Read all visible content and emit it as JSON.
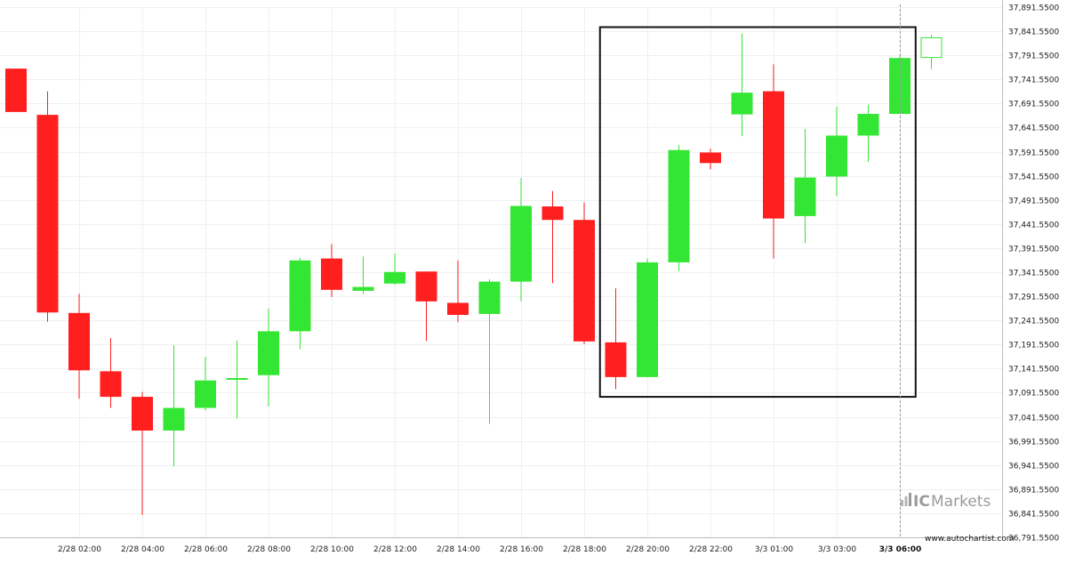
{
  "chart_data": {
    "type": "candlestick",
    "title": "",
    "xlabel": "",
    "ylabel": "",
    "ylim": [
      36791.55,
      37891.55
    ],
    "y_ticks": [
      "37,891.5500",
      "37,841.5500",
      "37,791.5500",
      "37,741.5500",
      "37,691.5500",
      "37,641.5500",
      "37,591.5500",
      "37,541.5500",
      "37,491.5500",
      "37,441.5500",
      "37,391.5500",
      "37,341.5500",
      "37,291.5500",
      "37,241.5500",
      "37,191.5500",
      "37,141.5500",
      "37,091.5500",
      "37,041.5500",
      "36,991.5500",
      "36,941.5500",
      "36,891.5500",
      "36,841.5500",
      "36,791.5500"
    ],
    "x_ticks": [
      {
        "label": "2/28 02:00",
        "index": 2.0
      },
      {
        "label": "2/28 04:00",
        "index": 4.0
      },
      {
        "label": "2/28 06:00",
        "index": 6.0
      },
      {
        "label": "2/28 08:00",
        "index": 8.0
      },
      {
        "label": "2/28 10:00",
        "index": 10.0
      },
      {
        "label": "2/28 12:00",
        "index": 12.0
      },
      {
        "label": "2/28 14:00",
        "index": 14.0
      },
      {
        "label": "2/28 16:00",
        "index": 16.0
      },
      {
        "label": "2/28 18:00",
        "index": 18.0
      },
      {
        "label": "2/28 20:00",
        "index": 20.0
      },
      {
        "label": "2/28 22:00",
        "index": 22.0
      },
      {
        "label": "3/3 01:00",
        "index": 24.0
      },
      {
        "label": "3/3 03:00",
        "index": 26.0
      },
      {
        "label": "3/3 06:00",
        "index": 28.0,
        "bold": true
      }
    ],
    "candles": [
      {
        "open": 37764,
        "high": 37764,
        "low": 37674,
        "close": 37674
      },
      {
        "open": 37668,
        "high": 37717,
        "low": 37239,
        "close": 37258
      },
      {
        "open": 37257,
        "high": 37297,
        "low": 37079,
        "close": 37138
      },
      {
        "open": 37136,
        "high": 37205,
        "low": 37060,
        "close": 37083
      },
      {
        "open": 37083,
        "high": 37093,
        "low": 36838,
        "close": 37013
      },
      {
        "open": 37013,
        "high": 37190,
        "low": 36939,
        "close": 37060
      },
      {
        "open": 37060,
        "high": 37166,
        "low": 37055,
        "close": 37117
      },
      {
        "open": 37122,
        "high": 37200,
        "low": 37038,
        "close": 37122
      },
      {
        "open": 37128,
        "high": 37266,
        "low": 37063,
        "close": 37219
      },
      {
        "open": 37219,
        "high": 37371,
        "low": 37182,
        "close": 37366
      },
      {
        "open": 37370,
        "high": 37400,
        "low": 37290,
        "close": 37305
      },
      {
        "open": 37303,
        "high": 37374,
        "low": 37296,
        "close": 37311
      },
      {
        "open": 37318,
        "high": 37380,
        "low": 37315,
        "close": 37342
      },
      {
        "open": 37343,
        "high": 37343,
        "low": 37199,
        "close": 37281
      },
      {
        "open": 37278,
        "high": 37366,
        "low": 37238,
        "close": 37253
      },
      {
        "open": 37255,
        "high": 37327,
        "low": 37027,
        "close": 37322
      },
      {
        "open": 37322,
        "high": 37537,
        "low": 37281,
        "close": 37479
      },
      {
        "open": 37478,
        "high": 37510,
        "low": 37319,
        "close": 37450
      },
      {
        "open": 37450,
        "high": 37486,
        "low": 37192,
        "close": 37198
      },
      {
        "open": 37196,
        "high": 37308,
        "low": 37099,
        "close": 37124
      },
      {
        "open": 37124,
        "high": 37370,
        "low": 37124,
        "close": 37362
      },
      {
        "open": 37362,
        "high": 37606,
        "low": 37344,
        "close": 37595
      },
      {
        "open": 37590,
        "high": 37598,
        "low": 37555,
        "close": 37568
      },
      {
        "open": 37669,
        "high": 37837,
        "low": 37624,
        "close": 37714
      },
      {
        "open": 37717,
        "high": 37773,
        "low": 37370,
        "close": 37453
      },
      {
        "open": 37458,
        "high": 37639,
        "low": 37402,
        "close": 37538
      },
      {
        "open": 37540,
        "high": 37685,
        "low": 37500,
        "close": 37625
      },
      {
        "open": 37625,
        "high": 37689,
        "low": 37570,
        "close": 37670
      },
      {
        "open": 37670,
        "high": 37791,
        "low": 37670,
        "close": 37786
      },
      {
        "open": 37787,
        "high": 37834,
        "low": 37763,
        "close": 37828,
        "hollow": true
      }
    ],
    "pattern_box": {
      "from_index": 18.5,
      "to_index": 28.5,
      "low": 37083,
      "high": 37850
    },
    "current_time_index": 28.0,
    "grid": true,
    "up_color": "#33e633",
    "down_color": "#ff1f1f"
  },
  "brand": {
    "name_bold": "IC",
    "name_rest": "Markets",
    "url": "www.autochartist.com",
    "color": "#9a9a9a"
  }
}
